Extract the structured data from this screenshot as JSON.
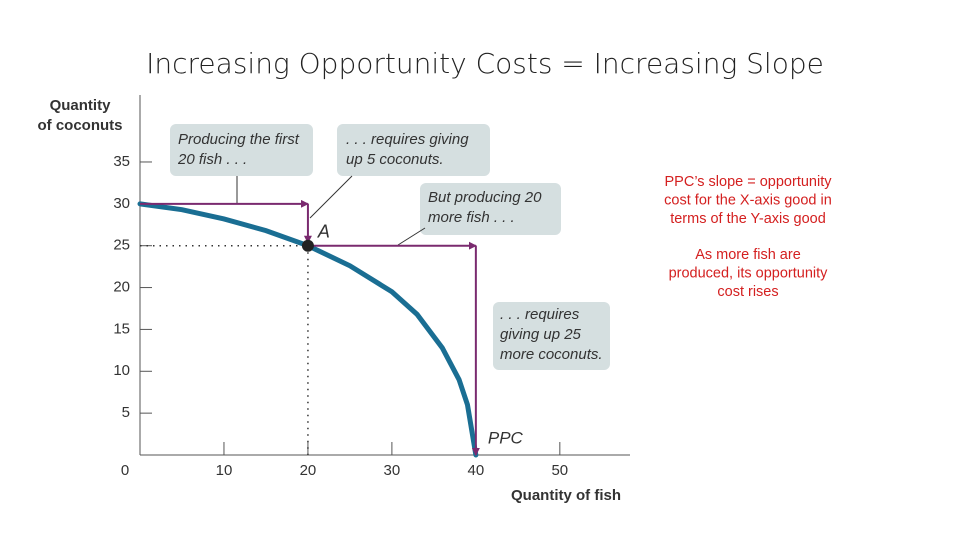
{
  "title": "Increasing Opportunity Costs = Increasing Slope",
  "chart_data": {
    "type": "line",
    "y_label": [
      "Quantity",
      "of coconuts"
    ],
    "x_label": "Quantity of fish",
    "x": [
      0,
      5,
      10,
      15,
      20,
      25,
      30,
      33,
      36,
      38,
      39,
      40
    ],
    "series": [
      {
        "name": "PPC",
        "color": "#1a6e93",
        "values": [
          30,
          29.3,
          28.2,
          26.8,
          25,
          22.6,
          19.5,
          16.8,
          12.8,
          9,
          6,
          0
        ]
      }
    ],
    "point": {
      "label": "A",
      "x": 20,
      "y": 25
    },
    "xlim": [
      0,
      58
    ],
    "ylim": [
      0,
      43
    ],
    "xticks": [
      0,
      10,
      20,
      30,
      40,
      50
    ],
    "yticks": [
      5,
      10,
      15,
      20,
      25,
      30,
      35
    ],
    "annotations": [
      {
        "lines": [
          "Producing the first",
          "20 fish . . ."
        ]
      },
      {
        "lines": [
          ". . . requires giving",
          "up 5 coconuts."
        ]
      },
      {
        "lines": [
          "But producing 20",
          "more fish . . ."
        ]
      },
      {
        "lines": [
          ". . . requires",
          "giving up 25",
          "more coconuts."
        ]
      }
    ]
  },
  "notes": [
    {
      "lines": [
        "PPC’s slope = opportunity",
        "cost for the X-axis good in",
        "terms of the Y-axis good"
      ]
    },
    {
      "lines": [
        "As more fish are",
        "produced, its opportunity",
        "cost rises"
      ]
    }
  ]
}
